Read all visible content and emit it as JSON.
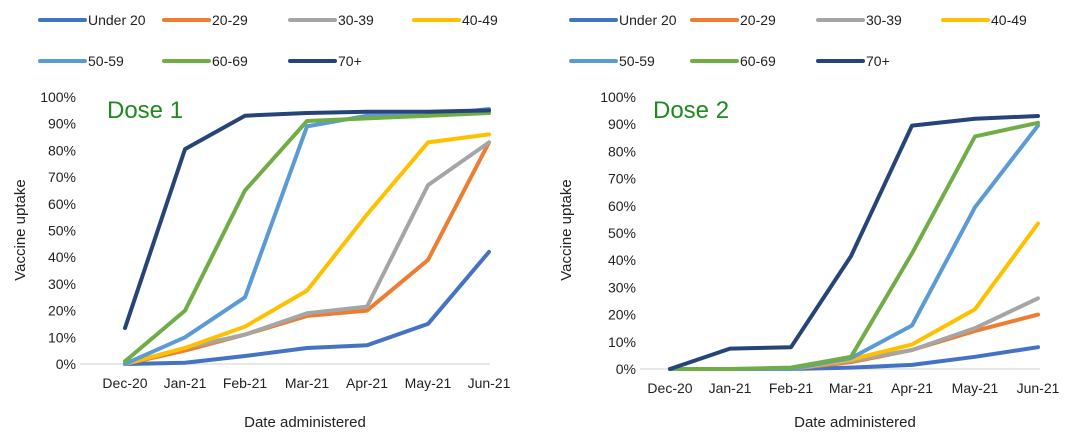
{
  "chart_data": [
    {
      "type": "line",
      "title": "Dose 1",
      "xlabel": "Date administered",
      "ylabel": "Vaccine uptake",
      "categories": [
        "Dec-20",
        "Jan-21",
        "Feb-21",
        "Mar-21",
        "Apr-21",
        "May-21",
        "Jun-21"
      ],
      "ylim": [
        0,
        100
      ],
      "yticks": [
        "0%",
        "10%",
        "20%",
        "30%",
        "40%",
        "50%",
        "60%",
        "70%",
        "80%",
        "90%",
        "100%"
      ],
      "grid": false,
      "legend_position": "top",
      "title_color": "#1f8a1f",
      "series": [
        {
          "name": "Under 20",
          "color": "#4472c4",
          "values": [
            0,
            0.5,
            3,
            6,
            7,
            15,
            42
          ]
        },
        {
          "name": "20-29",
          "color": "#ed7d31",
          "values": [
            0,
            5,
            11,
            18,
            20,
            39,
            83
          ]
        },
        {
          "name": "30-39",
          "color": "#a5a5a5",
          "values": [
            0,
            6,
            11,
            19,
            21.5,
            67,
            83
          ]
        },
        {
          "name": "40-49",
          "color": "#ffc000",
          "values": [
            0,
            6,
            14,
            27.5,
            56,
            83,
            86
          ]
        },
        {
          "name": "50-59",
          "color": "#5b9bd5",
          "values": [
            0,
            10,
            25,
            89,
            93,
            93,
            95.5
          ]
        },
        {
          "name": "60-69",
          "color": "#70ad47",
          "values": [
            1,
            20,
            65,
            91,
            92,
            93,
            94
          ]
        },
        {
          "name": "70+",
          "color": "#264478",
          "values": [
            13.5,
            80.5,
            93,
            94,
            94.5,
            94.5,
            95
          ]
        }
      ]
    },
    {
      "type": "line",
      "title": "Dose 2",
      "xlabel": "Date administered",
      "ylabel": "Vaccine uptake",
      "categories": [
        "Dec-20",
        "Jan-21",
        "Feb-21",
        "Mar-21",
        "Apr-21",
        "May-21",
        "Jun-21"
      ],
      "ylim": [
        0,
        100
      ],
      "yticks": [
        "0%",
        "10%",
        "20%",
        "30%",
        "40%",
        "50%",
        "60%",
        "70%",
        "80%",
        "90%",
        "100%"
      ],
      "grid": false,
      "legend_position": "top",
      "title_color": "#1f8a1f",
      "series": [
        {
          "name": "Under 20",
          "color": "#4472c4",
          "values": [
            0,
            0,
            0,
            0.5,
            1.5,
            4.5,
            8
          ]
        },
        {
          "name": "20-29",
          "color": "#ed7d31",
          "values": [
            0,
            0,
            0,
            2.5,
            7,
            14,
            20
          ]
        },
        {
          "name": "30-39",
          "color": "#a5a5a5",
          "values": [
            0,
            0,
            0,
            3,
            7,
            15,
            26
          ]
        },
        {
          "name": "40-49",
          "color": "#ffc000",
          "values": [
            0,
            0,
            0,
            3.5,
            9,
            22,
            53.5
          ]
        },
        {
          "name": "50-59",
          "color": "#5b9bd5",
          "values": [
            0,
            0,
            0,
            4,
            16,
            59.5,
            89.5
          ]
        },
        {
          "name": "60-69",
          "color": "#70ad47",
          "values": [
            0,
            0,
            0.5,
            4.5,
            42.5,
            85.5,
            90.5
          ]
        },
        {
          "name": "70+",
          "color": "#264478",
          "values": [
            0,
            7.5,
            8,
            41.5,
            89.5,
            92,
            93
          ]
        }
      ]
    }
  ]
}
